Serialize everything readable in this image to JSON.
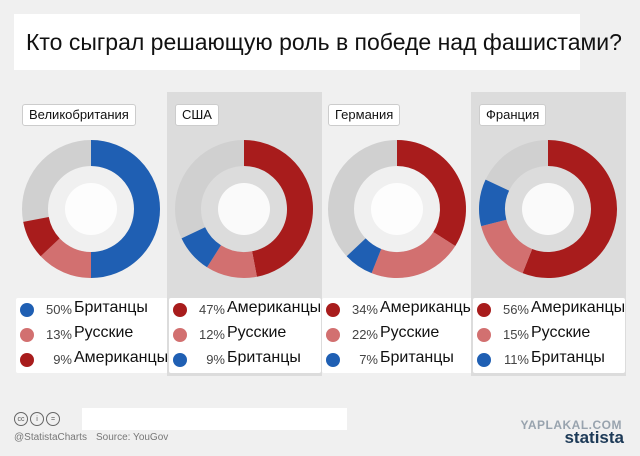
{
  "title": "Кто сыграл решающую роль в победе над фашистами?",
  "colors": {
    "britons": "#1f5fb3",
    "russians": "#d27070",
    "americans": "#a81c1c",
    "other": "#d0d0d0"
  },
  "chart_data": [
    {
      "type": "pie",
      "country": "Великобритания",
      "slices": [
        {
          "label": "Британцы",
          "value": 50,
          "pct_text": "50%",
          "color": "#1f5fb3"
        },
        {
          "label": "Русские",
          "value": 13,
          "pct_text": "13%",
          "color": "#d27070"
        },
        {
          "label": "Американцы",
          "value": 9,
          "pct_text": "9%",
          "color": "#a81c1c"
        }
      ]
    },
    {
      "type": "pie",
      "country": "США",
      "slices": [
        {
          "label": "Американцы",
          "value": 47,
          "pct_text": "47%",
          "color": "#a81c1c"
        },
        {
          "label": "Русские",
          "value": 12,
          "pct_text": "12%",
          "color": "#d27070"
        },
        {
          "label": "Британцы",
          "value": 9,
          "pct_text": "9%",
          "color": "#1f5fb3"
        }
      ]
    },
    {
      "type": "pie",
      "country": "Германия",
      "slices": [
        {
          "label": "Американцы",
          "value": 34,
          "pct_text": "34%",
          "color": "#a81c1c"
        },
        {
          "label": "Русские",
          "value": 22,
          "pct_text": "22%",
          "color": "#d27070"
        },
        {
          "label": "Британцы",
          "value": 7,
          "pct_text": "7%",
          "color": "#1f5fb3"
        }
      ]
    },
    {
      "type": "pie",
      "country": "Франция",
      "slices": [
        {
          "label": "Американцы",
          "value": 56,
          "pct_text": "56%",
          "color": "#a81c1c"
        },
        {
          "label": "Русские",
          "value": 15,
          "pct_text": "15%",
          "color": "#d27070"
        },
        {
          "label": "Британцы",
          "value": 11,
          "pct_text": "11%",
          "color": "#1f5fb3"
        }
      ]
    }
  ],
  "footer": {
    "cc_icons": [
      "cc",
      "i",
      "="
    ],
    "handle": "@StatistaCharts",
    "source": "Source: YouGov",
    "brand": "statista",
    "watermark": "YAPLAKAL.COM"
  }
}
